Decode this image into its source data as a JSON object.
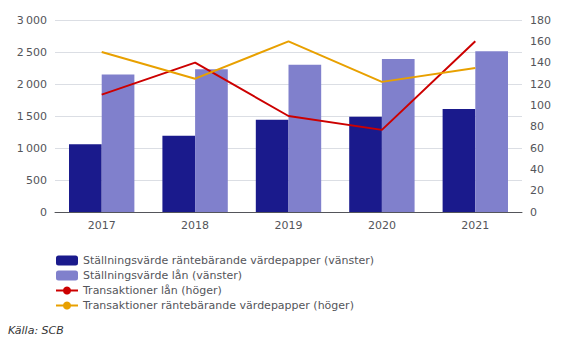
{
  "chart_data": {
    "type": "bar",
    "categories": [
      "2017",
      "2018",
      "2019",
      "2020",
      "2021"
    ],
    "series": [
      {
        "name": "Ställningsvärde räntebärande värdepapper (vänster)",
        "type": "bar",
        "color": "#1a1a8c",
        "values": [
          1060,
          1190,
          1440,
          1490,
          1610
        ]
      },
      {
        "name": "Ställningsvärde lån (vänster)",
        "type": "bar",
        "color": "#8080cc",
        "values": [
          2150,
          2230,
          2300,
          2390,
          2510
        ]
      },
      {
        "name": "Transaktioner lån (höger)",
        "type": "line",
        "axis": "y2",
        "color": "#cc0000",
        "values": [
          110,
          140,
          90,
          77,
          160
        ]
      },
      {
        "name": "Transaktioner räntebärande värdepapper (höger)",
        "type": "line",
        "axis": "y2",
        "color": "#e8a000",
        "values": [
          150,
          125,
          160,
          122,
          135
        ]
      }
    ],
    "ylim": [
      0,
      3000
    ],
    "yticks": [
      0,
      500,
      {
        "value": 1000,
        "label": "1 000"
      },
      {
        "value": 1500,
        "label": "1 500"
      },
      {
        "value": 2000,
        "label": "2 000"
      },
      {
        "value": 2500,
        "label": "2 500"
      },
      {
        "value": 3000,
        "label": "3 000"
      }
    ],
    "y2lim": [
      0,
      180
    ],
    "y2ticks": [
      0,
      20,
      40,
      60,
      80,
      100,
      120,
      140,
      160,
      180
    ],
    "grid": true,
    "legend": "bottom",
    "annotations": [
      "Källa: SCB"
    ]
  }
}
